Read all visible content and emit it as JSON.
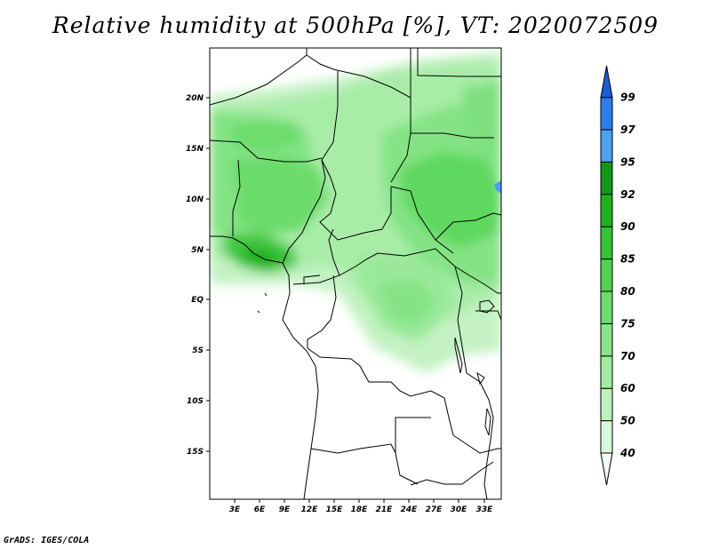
{
  "title": "Relative humidity at 500hPa [%], VT: 2020072509",
  "credit": "GrADS: IGES/COLA",
  "map": {
    "lat_labels": [
      "20N",
      "15N",
      "10N",
      "5N",
      "EQ",
      "5S",
      "10S",
      "15S"
    ],
    "lon_labels": [
      "3E",
      "6E",
      "9E",
      "12E",
      "15E",
      "18E",
      "21E",
      "24E",
      "27E",
      "30E",
      "33E"
    ]
  },
  "colorbar": {
    "levels": [
      "40",
      "50",
      "60",
      "70",
      "75",
      "80",
      "85",
      "90",
      "92",
      "95",
      "97",
      "99"
    ],
    "colors": [
      "#f0fdf0",
      "#d8f8d8",
      "#bdf2bd",
      "#a2eca2",
      "#87e487",
      "#6cdc6c",
      "#51d251",
      "#36c436",
      "#1fb01f",
      "#14961a",
      "#4ea0f0",
      "#2d7fe6",
      "#1a5ed0"
    ]
  }
}
